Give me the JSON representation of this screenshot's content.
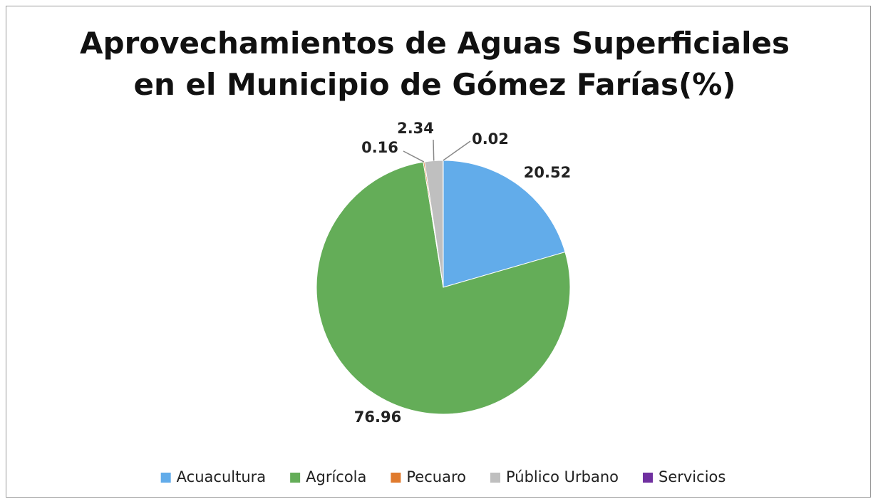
{
  "chart_data": {
    "type": "pie",
    "title": "Aprovechamientos de Aguas Superficiales en el Municipio de Gómez Farías(%)",
    "categories": [
      "Acuacultura",
      "Agrícola",
      "Pecuaro",
      "Público Urbano",
      "Servicios"
    ],
    "values": [
      20.52,
      76.96,
      0.16,
      2.34,
      0.02
    ],
    "colors": [
      "#62acea",
      "#64ad58",
      "#e07b2e",
      "#bfbfbf",
      "#7030a0"
    ],
    "legend": "bottom"
  }
}
